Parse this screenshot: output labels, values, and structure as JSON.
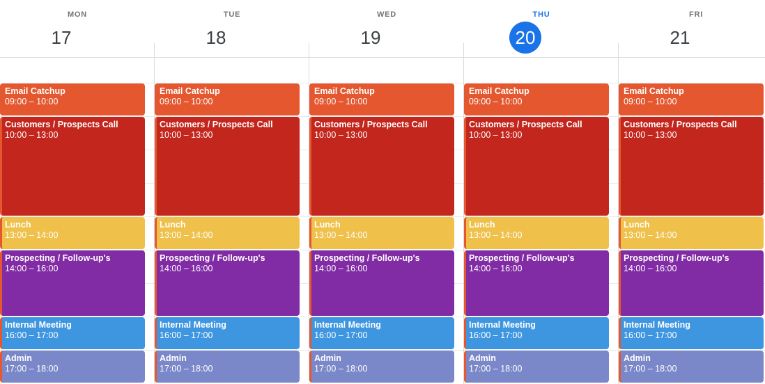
{
  "days": [
    {
      "dow": "MON",
      "date": "17",
      "today": false
    },
    {
      "dow": "TUE",
      "date": "18",
      "today": false
    },
    {
      "dow": "WED",
      "date": "19",
      "today": false
    },
    {
      "dow": "THU",
      "date": "20",
      "today": true
    },
    {
      "dow": "FRI",
      "date": "21",
      "today": false
    }
  ],
  "events": [
    {
      "title": "Email Catchup",
      "time": "09:00 – 10:00",
      "color": "#e4572f"
    },
    {
      "title": "Customers / Prospects Call",
      "time": "10:00 – 13:00",
      "color": "#c3261d"
    },
    {
      "title": "Lunch",
      "time": "13:00 – 14:00",
      "color": "#efc04a"
    },
    {
      "title": "Prospecting / Follow-up's",
      "time": "14:00 – 16:00",
      "color": "#812ba4"
    },
    {
      "title": "Internal Meeting",
      "time": "16:00 – 17:00",
      "color": "#3f96e0"
    },
    {
      "title": "Admin",
      "time": "17:00 – 18:00",
      "color": "#7a87c8"
    }
  ],
  "colors": {
    "today_accent": "#1a73e8",
    "stack_edge": "#e4572f"
  }
}
